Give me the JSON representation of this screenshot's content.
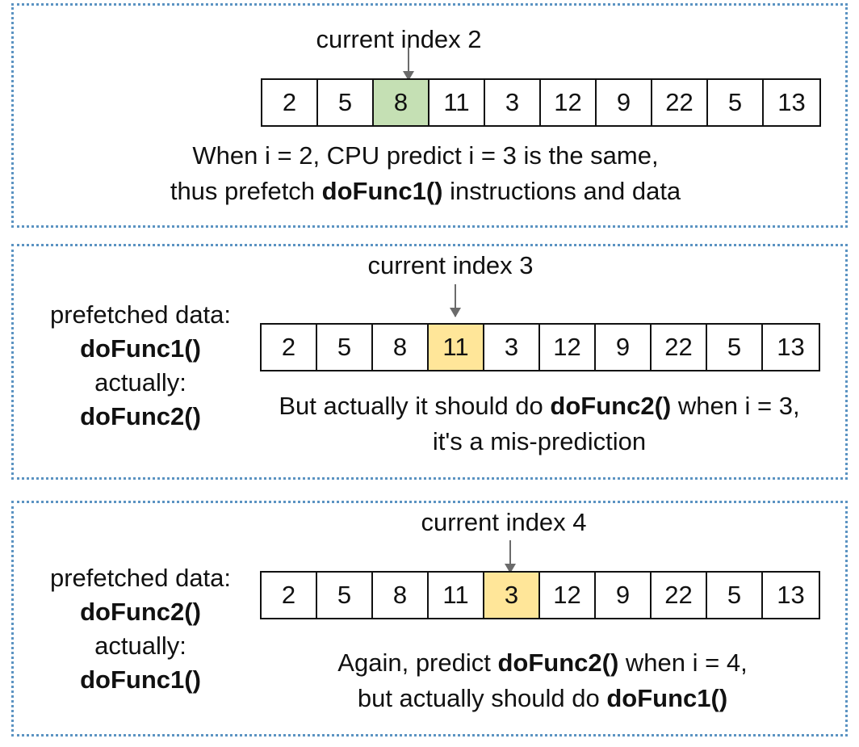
{
  "panels": [
    {
      "index_label": "current index 2",
      "highlight_index": 2,
      "highlight_color": "#c5e0b4",
      "array": [
        "2",
        "5",
        "8",
        "11",
        "3",
        "12",
        "9",
        "22",
        "5",
        "13"
      ],
      "caption": {
        "line1": "When i = 2, CPU predict i = 3 is the same,",
        "line2_pre": "thus prefetch ",
        "line2_bold": "doFunc1()",
        "line2_post": " instructions and data"
      }
    },
    {
      "index_label": "current index 3",
      "highlight_index": 3,
      "highlight_color": "#ffe699",
      "array": [
        "2",
        "5",
        "8",
        "11",
        "3",
        "12",
        "9",
        "22",
        "5",
        "13"
      ],
      "side": {
        "prefetched_label": "prefetched data:",
        "prefetched_fn": "doFunc1()",
        "actual_label": "actually:",
        "actual_fn": "doFunc2()"
      },
      "caption": {
        "line1_pre": "But actually it should do ",
        "line1_bold": "doFunc2()",
        "line1_post": " when i = 3,",
        "line2": "it's a mis-prediction"
      }
    },
    {
      "index_label": "current index 4",
      "highlight_index": 4,
      "highlight_color": "#ffe699",
      "array": [
        "2",
        "5",
        "8",
        "11",
        "3",
        "12",
        "9",
        "22",
        "5",
        "13"
      ],
      "side": {
        "prefetched_label": "prefetched data:",
        "prefetched_fn": "doFunc2()",
        "actual_label": "actually:",
        "actual_fn": "doFunc1()"
      },
      "caption": {
        "line1_pre": "Again, predict ",
        "line1_bold": "doFunc2()",
        "line1_post": " when i = 4,",
        "line2_pre": "but actually should do ",
        "line2_bold": "doFunc1()"
      }
    }
  ]
}
